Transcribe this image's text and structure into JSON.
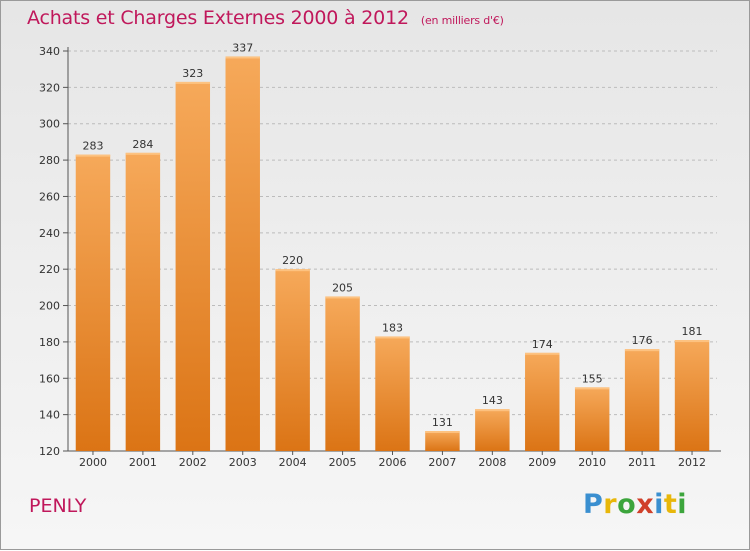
{
  "title": "Achats et Charges Externes 2000 à 2012",
  "unit": "(en milliers d'€)",
  "place": "PENLY",
  "logo": {
    "letters": [
      "P",
      "r",
      "o",
      "x",
      "i",
      "t",
      "i"
    ],
    "colors": [
      "#3a8fd0",
      "#e8b70a",
      "#3ca53c",
      "#d0402a",
      "#3a8fd0",
      "#e8b70a",
      "#3ca53c"
    ]
  },
  "colors": {
    "title": "#c0185b",
    "bar_light": "#f6a95a",
    "bar_dark": "#db7415",
    "grid": "#bcbcbc"
  },
  "chart_data": {
    "type": "bar",
    "categories": [
      "2000",
      "2001",
      "2002",
      "2003",
      "2004",
      "2005",
      "2006",
      "2007",
      "2008",
      "2009",
      "2010",
      "2011",
      "2012"
    ],
    "values": [
      283,
      284,
      323,
      337,
      220,
      205,
      183,
      131,
      143,
      174,
      155,
      176,
      181
    ],
    "title": "Achats et Charges Externes 2000 à 2012",
    "xlabel": "",
    "ylabel": "",
    "ylim": [
      120,
      340
    ],
    "yticks": [
      120,
      140,
      160,
      180,
      200,
      220,
      240,
      260,
      280,
      300,
      320,
      340
    ],
    "grid": true
  }
}
